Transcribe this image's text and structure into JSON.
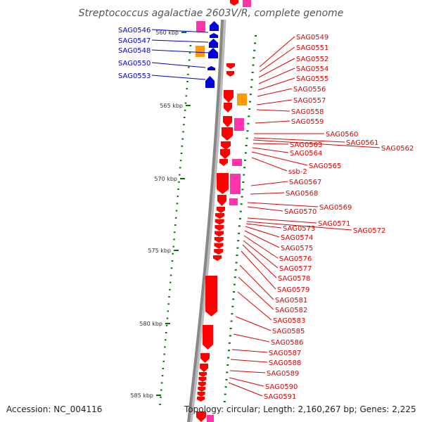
{
  "title": "Streptococcus agalactiae 2603V/R, complete genome",
  "accession": "Accession: NC_004116",
  "topology": "Topology: circular; Length: 2,160,267 bp; Genes: 2,225",
  "scale_labels": [
    "560 kbp",
    "565 kbp",
    "570 kbp",
    "575 kbp",
    "580 kbp",
    "585 kbp"
  ],
  "colors": {
    "backbone": "#888888",
    "gene_minus": "#ff0000",
    "gene_plus": "#0000dd",
    "rna_or_special": "#ff33aa",
    "orange_gene": "#ff9900",
    "tick": "#007700",
    "left_labels": "#0000cc",
    "right_labels": "#dd0000"
  },
  "left_genes": [
    "SAG0546",
    "SAG0547",
    "SAG0548",
    "SAG0550",
    "SAG0553"
  ],
  "right_genes": [
    "SAG0549",
    "SAG0551",
    "SAG0552",
    "SAG0554",
    "SAG0555",
    "SAG0556",
    "SAG0557",
    "SAG0558",
    "SAG0559",
    "SAG0560",
    "SAG0561",
    "SAG0562",
    "SAG0563",
    "SAG0564",
    "SAG0565",
    "ssb-2",
    "SAG0567",
    "SAG0568",
    "SAG0569",
    "SAG0570",
    "SAG0571",
    "SAG0572",
    "SAG0573",
    "SAG0574",
    "SAG0575",
    "SAG0576",
    "SAG0577",
    "SAG0578",
    "SAG0579",
    "SAG0581",
    "SAG0582",
    "SAG0583",
    "SAG0585",
    "SAG0586",
    "SAG0587",
    "SAG0588",
    "SAG0589",
    "SAG0590",
    "SAG0591"
  ]
}
